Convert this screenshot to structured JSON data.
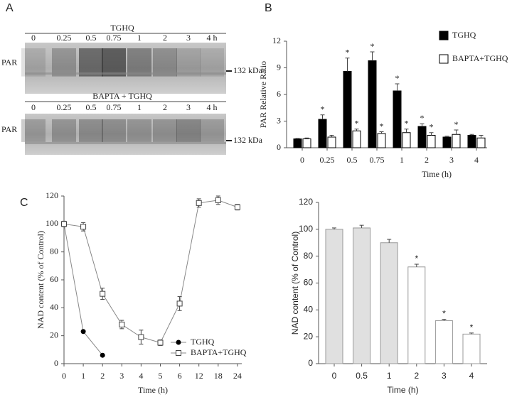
{
  "panels": [
    "A",
    "B",
    "C"
  ],
  "blots": [
    {
      "title": "TGHQ",
      "lanes": [
        "0",
        "0.25",
        "0.5",
        "0.75",
        "1",
        "2",
        "3",
        "4 h"
      ],
      "row_label": "PAR",
      "marker": "132 kDa"
    },
    {
      "title": "BAPTA + TGHQ",
      "lanes": [
        "0",
        "0.25",
        "0.5",
        "0.75",
        "1",
        "2",
        "3",
        "4 h"
      ],
      "row_label": "PAR",
      "marker": "132 kDa"
    }
  ],
  "chart_data": [
    {
      "type": "bar",
      "ylabel": "PAR Relative Ratio",
      "xlabel": "Time (h)",
      "categories": [
        "0",
        "0.25",
        "0.5",
        "0.75",
        "1",
        "2",
        "3",
        "4"
      ],
      "ylim": [
        0,
        12
      ],
      "yticks": [
        0,
        3,
        6,
        9,
        12
      ],
      "legend": "upper right",
      "significance_label": "*",
      "series": [
        {
          "name": "TGHQ",
          "color": "#000000",
          "values": [
            1.0,
            3.2,
            8.6,
            9.8,
            6.4,
            2.4,
            1.2,
            1.4
          ],
          "errors": [
            0.05,
            0.5,
            1.5,
            1.0,
            0.8,
            0.3,
            0.1,
            0.1
          ],
          "significant": [
            false,
            true,
            true,
            true,
            true,
            true,
            false,
            false
          ]
        },
        {
          "name": "BAPTA+TGHQ",
          "color": "#ffffff",
          "values": [
            1.0,
            1.2,
            1.9,
            1.6,
            1.7,
            1.4,
            1.5,
            1.1
          ],
          "errors": [
            0.1,
            0.2,
            0.2,
            0.2,
            0.4,
            0.3,
            0.5,
            0.3
          ],
          "significant": [
            false,
            false,
            true,
            true,
            true,
            true,
            true,
            false
          ]
        }
      ]
    },
    {
      "type": "line",
      "ylabel": "NAD content (% of Control)",
      "xlabel": "Time (h)",
      "categories": [
        "0",
        "1",
        "2",
        "3",
        "4",
        "5",
        "6",
        "12",
        "18",
        "24"
      ],
      "ylim": [
        0,
        120
      ],
      "yticks": [
        0,
        20,
        40,
        60,
        80,
        100,
        120
      ],
      "legend": "lower right",
      "series": [
        {
          "name": "TGHQ",
          "color": "#000000",
          "marker": "circle",
          "values": [
            100,
            23,
            6,
            null,
            null,
            null,
            null,
            null,
            null,
            null
          ]
        },
        {
          "name": "BAPTA+TGHQ",
          "color": "#ffffff",
          "marker": "square",
          "values": [
            100,
            98,
            50,
            28,
            19,
            15,
            43,
            115,
            117,
            112
          ],
          "errors": [
            2,
            3,
            4,
            3,
            5,
            2,
            5,
            3,
            3,
            2
          ]
        }
      ]
    },
    {
      "type": "bar",
      "ylabel": "NAD content (% of Control)",
      "xlabel": "Time (h)",
      "categories": [
        "0",
        "0.5",
        "1",
        "2",
        "3",
        "4"
      ],
      "ylim": [
        0,
        120
      ],
      "yticks": [
        0,
        20,
        40,
        60,
        80,
        100,
        120
      ],
      "significance_label": "*",
      "values": [
        100,
        101,
        90,
        72,
        32,
        22
      ],
      "errors": [
        1,
        2,
        2.5,
        2,
        1,
        0.8
      ],
      "colors": [
        "#e0e0e0",
        "#e0e0e0",
        "#e0e0e0",
        "#ffffff",
        "#ffffff",
        "#ffffff"
      ],
      "significant": [
        false,
        false,
        false,
        true,
        true,
        true
      ]
    }
  ]
}
